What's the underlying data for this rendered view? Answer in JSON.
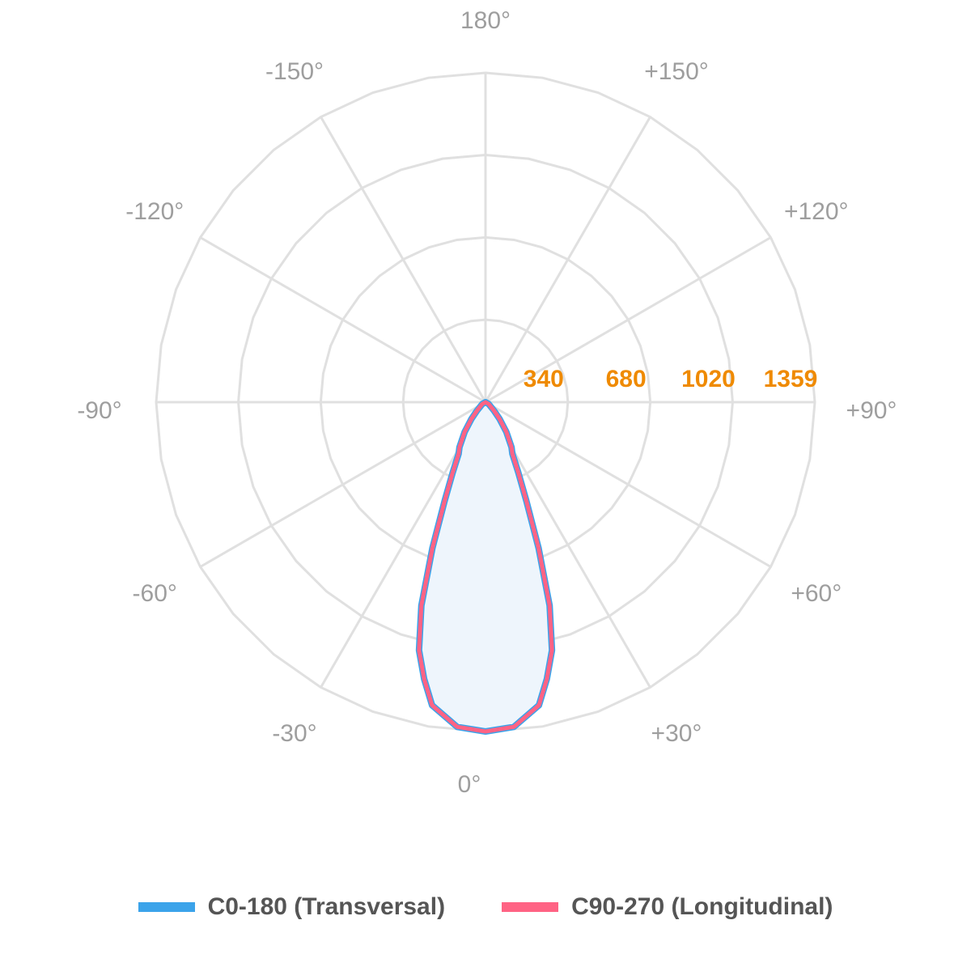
{
  "chart_data": {
    "type": "polar",
    "title": "",
    "radial_range": [
      0,
      1359
    ],
    "radial_ticks": [
      "340",
      "680",
      "1020",
      "1359"
    ],
    "radial_tick_values": [
      340,
      680,
      1020,
      1359
    ],
    "angle_labels": [
      {
        "angle": 0,
        "label": "0°"
      },
      {
        "angle": 30,
        "label": "+30°"
      },
      {
        "angle": 60,
        "label": "+60°"
      },
      {
        "angle": 90,
        "label": "+90°"
      },
      {
        "angle": 120,
        "label": "+120°"
      },
      {
        "angle": 150,
        "label": "+150°"
      },
      {
        "angle": 180,
        "label": "180°"
      },
      {
        "angle": -150,
        "label": "-150°"
      },
      {
        "angle": -120,
        "label": "-120°"
      },
      {
        "angle": -90,
        "label": "-90°"
      },
      {
        "angle": -60,
        "label": "-60°"
      },
      {
        "angle": -30,
        "label": "-30°"
      }
    ],
    "grid": true,
    "legend_position": "bottom",
    "angles": [
      0,
      5,
      10,
      12.5,
      15,
      17.5,
      20,
      22.5,
      25,
      27.5,
      30,
      35,
      40,
      45,
      60,
      90
    ],
    "series": [
      {
        "name": "C0-180 (Transversal)",
        "color": "#3ba3ea",
        "values": [
          1359,
          1345,
          1270,
          1170,
          1060,
          880,
          640,
          440,
          320,
          240,
          215,
          150,
          90,
          50,
          15,
          0
        ]
      },
      {
        "name": "C90-270 (Longitudinal)",
        "color": "#ff6384",
        "values": [
          1359,
          1345,
          1270,
          1170,
          1060,
          880,
          640,
          440,
          320,
          240,
          215,
          150,
          90,
          50,
          15,
          0
        ]
      }
    ],
    "fill_color": "#eef5fc",
    "grid_color": "#e0e0e0",
    "tick_color": "#ef8a00"
  }
}
